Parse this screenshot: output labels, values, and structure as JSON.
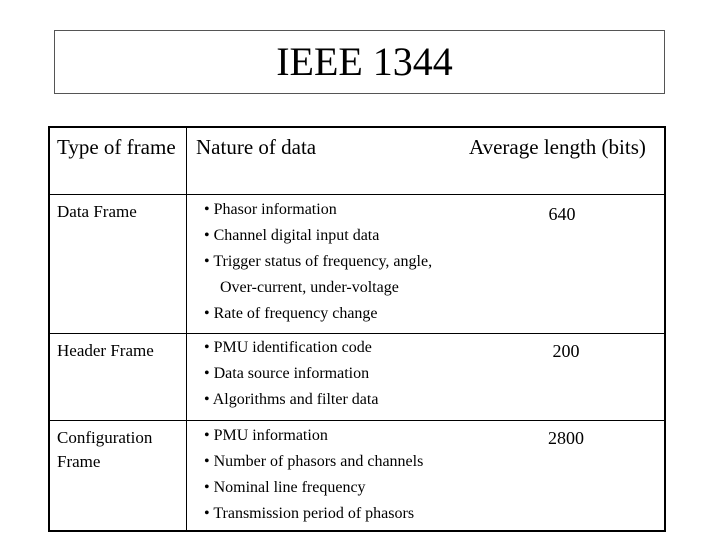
{
  "title": "IEEE 1344",
  "table": {
    "headers": {
      "type": "Type of frame",
      "nature": "Nature of data",
      "length": "Average length (bits)"
    },
    "rows": [
      {
        "type": "Data Frame",
        "bullets": [
          "• Phasor information",
          "• Channel digital input data",
          "• Trigger status of frequency, angle,",
          "Over-current, under-voltage",
          "• Rate of frequency change"
        ],
        "length": "640"
      },
      {
        "type": "Header Frame",
        "bullets": [
          "• PMU identification code",
          "• Data source information",
          "• Algorithms and filter data"
        ],
        "length": "200"
      },
      {
        "type": "Configuration Frame",
        "bullets": [
          "• PMU information",
          "• Number of phasors and channels",
          "• Nominal line frequency",
          "• Transmission period of phasors"
        ],
        "length": "2800"
      }
    ]
  }
}
